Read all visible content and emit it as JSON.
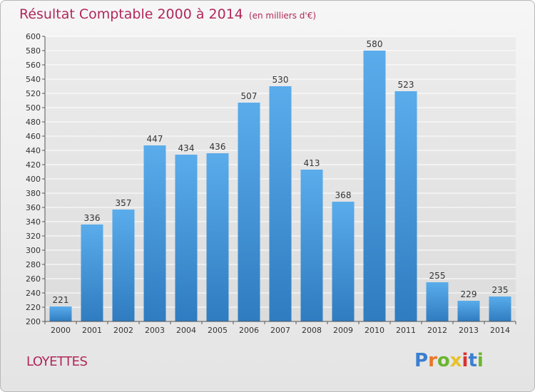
{
  "header": {
    "title": "Résultat Comptable 2000 à 2014",
    "subtitle": "(en milliers d'€)"
  },
  "location": "LOYETTES",
  "brand": {
    "letters": [
      "P",
      "r",
      "o",
      "x",
      "i",
      "t",
      "i"
    ],
    "colors": [
      "#3a7fd0",
      "#e8762b",
      "#6bb52e",
      "#e8c12b",
      "#d9322e",
      "#3a7fd0",
      "#6bb52e"
    ]
  },
  "chart_data": {
    "type": "bar",
    "categories": [
      "2000",
      "2001",
      "2002",
      "2003",
      "2004",
      "2005",
      "2006",
      "2007",
      "2008",
      "2009",
      "2010",
      "2011",
      "2012",
      "2013",
      "2014"
    ],
    "values": [
      221,
      336,
      357,
      447,
      434,
      436,
      507,
      530,
      413,
      368,
      580,
      523,
      255,
      229,
      235
    ],
    "title": "Résultat Comptable 2000 à 2014",
    "ylim": [
      200,
      600
    ],
    "yticks": [
      200,
      220,
      240,
      260,
      280,
      300,
      320,
      340,
      360,
      380,
      400,
      420,
      440,
      460,
      480,
      500,
      520,
      540,
      560,
      580,
      600
    ],
    "grid": true,
    "bar_color_light": "#5aaceb",
    "bar_color_dark": "#2f7cc0"
  }
}
